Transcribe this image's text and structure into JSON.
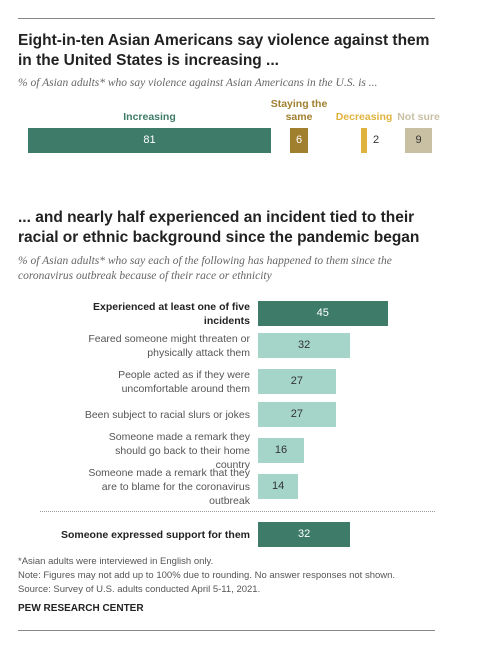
{
  "chart_data": [
    {
      "type": "stacked-bar",
      "title": "Eight-in-ten Asian Americans say violence against them in the United States is increasing ...",
      "subtitle": "% of Asian adults* who say violence against Asian Americans in the U.S. is ...",
      "series": [
        {
          "name": "Increasing",
          "color": "#3e7b69",
          "values": [
            81
          ]
        },
        {
          "name": "Staying the same",
          "color": "#a07f2e",
          "values": [
            6
          ]
        },
        {
          "name": "Decreasing",
          "color": "#e0b33f",
          "values": [
            2
          ]
        },
        {
          "name": "Not sure",
          "color": "#c9c0a4",
          "values": [
            9
          ]
        }
      ]
    },
    {
      "type": "bar",
      "title": "... and nearly half experienced an incident tied to their racial or ethnic background since the pandemic began",
      "subtitle": "% of Asian adults* who say each of the following has happened to them since the coronavirus outbreak because of their race or ethnicity",
      "categories": [
        "Experienced at least one of five incidents",
        "Feared someone might threaten or physically attack them",
        "People acted as if they were uncomfortable around them",
        "Been subject to racial slurs or jokes",
        "Someone made a remark they should go back to their home country",
        "Someone made a remark that they are to blame for the coronavirus outbreak",
        "Someone expressed support for them"
      ],
      "values": [
        45,
        32,
        27,
        27,
        16,
        14,
        32
      ],
      "colors": [
        "#3e7b69",
        "#a4d5c8",
        "#a4d5c8",
        "#a4d5c8",
        "#a4d5c8",
        "#a4d5c8",
        "#3e7b69"
      ]
    }
  ],
  "notes": [
    "*Asian adults were interviewed in English only.",
    "Note: Figures may not add up to 100% due to rounding. No answer responses not shown.",
    "Source: Survey of U.S. adults conducted April 5-11, 2021."
  ],
  "credit": "PEW RESEARCH CENTER"
}
